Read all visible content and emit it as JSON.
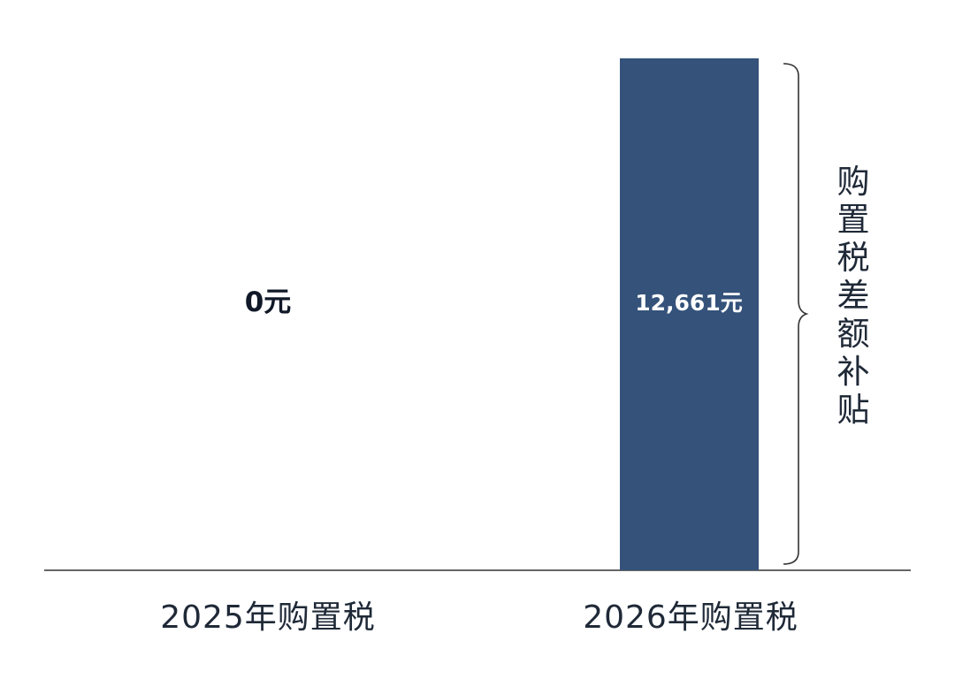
{
  "chart_data": {
    "type": "bar",
    "categories": [
      "2025年购置税",
      "2026年购置税"
    ],
    "values": [
      0,
      12661
    ],
    "data_labels": [
      "0元",
      "12,661元"
    ],
    "bar_color": "#34527a",
    "ylim": [
      0,
      12661
    ],
    "grid": false,
    "annotation": {
      "text": "购置税差额补贴",
      "applies_to": "2026年购置税"
    }
  }
}
